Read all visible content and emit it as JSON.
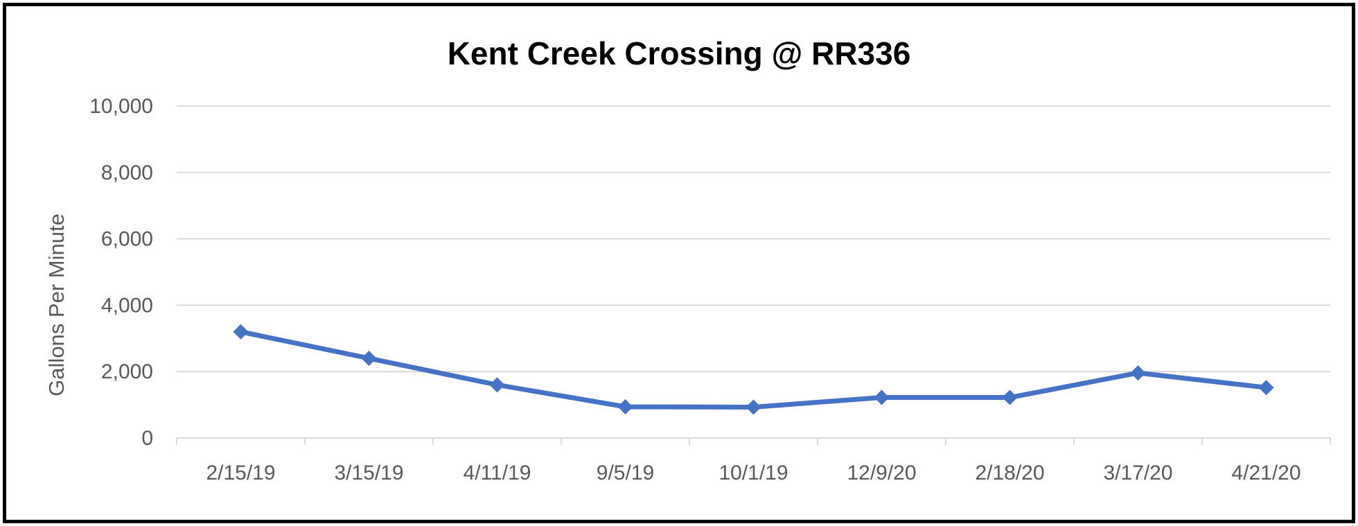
{
  "chart_data": {
    "type": "line",
    "title": "Kent Creek Crossing @ RR336",
    "xlabel": "",
    "ylabel": "Gallons Per Minute",
    "categories": [
      "2/15/19",
      "3/15/19",
      "4/11/19",
      "9/5/19",
      "10/1/19",
      "12/9/20",
      "2/18/20",
      "3/17/20",
      "4/21/20"
    ],
    "series": [
      {
        "values": [
          3200,
          2400,
          1600,
          940,
          930,
          1220,
          1220,
          1960,
          1520
        ]
      }
    ],
    "ylim": [
      0,
      10000
    ],
    "yticks": [
      0,
      2000,
      4000,
      6000,
      8000,
      10000
    ],
    "ytick_labels": [
      "0",
      "2,000",
      "4,000",
      "6,000",
      "8,000",
      "10,000"
    ],
    "grid": true,
    "legend": "none",
    "colors": {
      "line": "#4472C4",
      "grid": "#D9D9D9",
      "text": "#595959",
      "border": "#000000"
    },
    "marker": "diamond"
  }
}
